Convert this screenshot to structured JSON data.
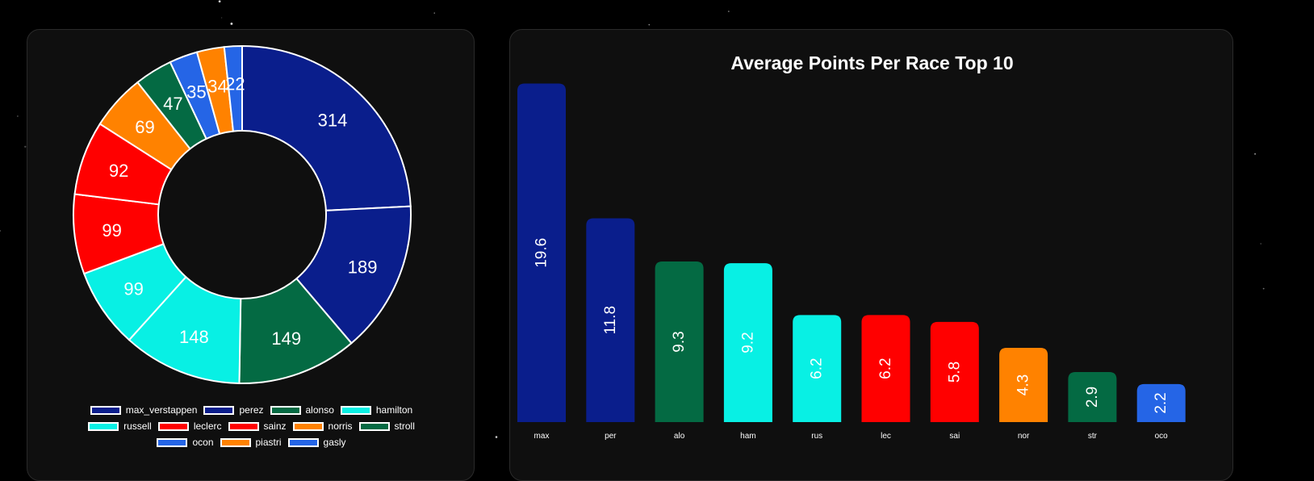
{
  "chart_data": [
    {
      "type": "pie",
      "variant": "donut",
      "labels": [
        "max_verstappen",
        "perez",
        "alonso",
        "hamilton",
        "russell",
        "leclerc",
        "sainz",
        "norris",
        "stroll",
        "ocon",
        "piastri",
        "gasly"
      ],
      "values": [
        314,
        189,
        149,
        148,
        99,
        99,
        92,
        69,
        47,
        35,
        34,
        22
      ],
      "colors": [
        "#0a1e8c",
        "#0a1e8c",
        "#046a43",
        "#08f0e4",
        "#08f0e4",
        "#ff0000",
        "#ff0000",
        "#ff8200",
        "#046a43",
        "#2565e6",
        "#ff8200",
        "#2565e6"
      ],
      "legend_rows": [
        [
          0,
          1,
          2,
          3
        ],
        [
          4,
          5,
          6,
          7,
          8
        ],
        [
          9,
          10,
          11
        ]
      ],
      "legend_position": "bottom"
    },
    {
      "type": "bar",
      "title": "Average Points Per Race Top 10",
      "categories": [
        "max",
        "per",
        "alo",
        "ham",
        "rus",
        "lec",
        "sai",
        "nor",
        "str",
        "oco"
      ],
      "values": [
        19.6,
        11.8,
        9.3,
        9.2,
        6.2,
        6.2,
        5.8,
        4.3,
        2.9,
        2.2
      ],
      "colors": [
        "#0a1e8c",
        "#0a1e8c",
        "#046a43",
        "#08f0e4",
        "#08f0e4",
        "#ff0000",
        "#ff0000",
        "#ff8200",
        "#046a43",
        "#2565e6"
      ],
      "ylim": [
        0,
        20
      ],
      "grid": false,
      "value_labels": "inside, rotated"
    }
  ]
}
